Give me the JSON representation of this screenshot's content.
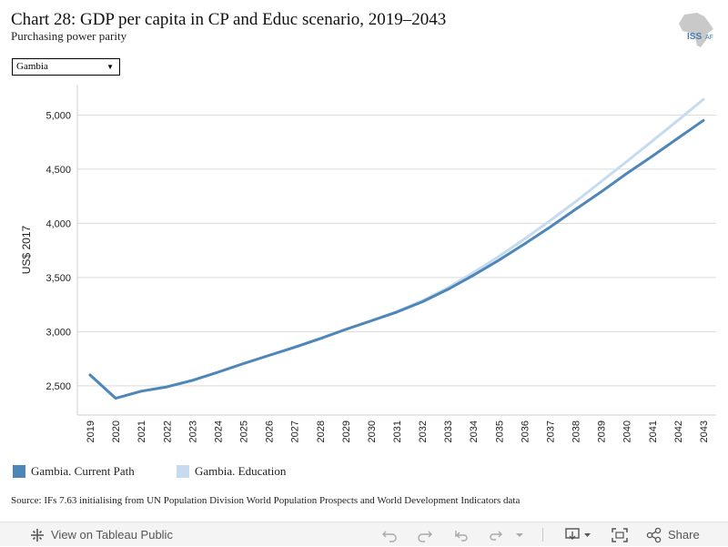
{
  "title": "Chart 28: GDP per capita in CP and Educ scenario, 2019–2043",
  "subtitle": "Purchasing power parity",
  "logo_text": "ISS AFRICA",
  "filter": {
    "selected": "Gambia"
  },
  "source": "Source: IFs 7.63 initialising from UN Population Division World Population Prospects and World Development Indicators data",
  "toolbar": {
    "view_label": "View on Tableau Public",
    "share_label": "Share"
  },
  "colors": {
    "current_path": "#4f86b8",
    "education": "#c6dbee",
    "grid": "#d9d9d9"
  },
  "chart_data": {
    "type": "line",
    "title": "",
    "xlabel": "",
    "ylabel": "US$ 2017",
    "x": [
      "2019",
      "2020",
      "2021",
      "2022",
      "2023",
      "2024",
      "2025",
      "2026",
      "2027",
      "2028",
      "2029",
      "2030",
      "2031",
      "2032",
      "2033",
      "2034",
      "2035",
      "2036",
      "2037",
      "2038",
      "2039",
      "2040",
      "2041",
      "2042",
      "2043"
    ],
    "ylim": [
      2230,
      5280
    ],
    "yticks": [
      2500,
      3000,
      3500,
      4000,
      4500,
      5000
    ],
    "ytick_labels": [
      "2,500",
      "3,000",
      "3,500",
      "4,000",
      "4,500",
      "5,000"
    ],
    "grid": true,
    "legend_position": "bottom-left",
    "series": [
      {
        "name": "Gambia. Current Path",
        "color": "#4f86b8",
        "values": [
          2600,
          2385,
          2450,
          2490,
          2550,
          2625,
          2705,
          2780,
          2855,
          2935,
          3020,
          3100,
          3180,
          3275,
          3390,
          3520,
          3660,
          3810,
          3965,
          4130,
          4290,
          4460,
          4620,
          4785,
          4950
        ]
      },
      {
        "name": "Gambia. Education",
        "color": "#c6dbee",
        "values": [
          2600,
          2385,
          2450,
          2490,
          2550,
          2625,
          2705,
          2780,
          2855,
          2935,
          3020,
          3100,
          3185,
          3285,
          3405,
          3545,
          3695,
          3855,
          4025,
          4200,
          4385,
          4570,
          4760,
          4950,
          5145
        ]
      }
    ]
  }
}
